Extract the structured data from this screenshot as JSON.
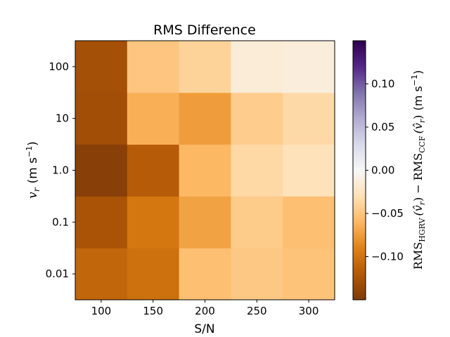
{
  "chart_data": {
    "type": "heatmap",
    "title": "RMS Difference",
    "xlabel": "S/N",
    "x_categories": [
      "100",
      "150",
      "200",
      "250",
      "300"
    ],
    "y_categories": [
      "0.01",
      "0.1",
      "1.0",
      "10",
      "100"
    ],
    "ylabel": {
      "var": "v",
      "sub": "r",
      "unit": "(m s",
      "exp": "−1",
      "close": ")"
    },
    "values": [
      [
        -0.11,
        -0.103,
        -0.055,
        -0.048,
        -0.052
      ],
      [
        -0.125,
        -0.098,
        -0.072,
        -0.046,
        -0.055
      ],
      [
        -0.145,
        -0.118,
        -0.06,
        -0.036,
        -0.028
      ],
      [
        -0.13,
        -0.065,
        -0.075,
        -0.045,
        -0.035
      ],
      [
        -0.128,
        -0.05,
        -0.04,
        -0.015,
        -0.013
      ]
    ],
    "colorbar": {
      "colormap": "PuOr",
      "range": [
        -0.15,
        0.15
      ],
      "ticks": [
        -0.1,
        -0.05,
        0.0,
        0.05,
        0.1
      ],
      "tick_labels": [
        "−0.10",
        "−0.05",
        "0.00",
        "0.05",
        "0.10"
      ],
      "label": "RMS_HGRV(v̂r) − RMS_CCF(v̂r) (m s⁻¹)",
      "label_parts": {
        "rms": "RMS",
        "sub1": "HGRV",
        "sub2": "CCF",
        "arg": "(v̂",
        "arg_sub": "r",
        "arg_close": ")",
        "minus": "−",
        "unit": "(m s",
        "exp": "−1",
        "close": ")"
      }
    },
    "grid": false,
    "legend": "none"
  }
}
